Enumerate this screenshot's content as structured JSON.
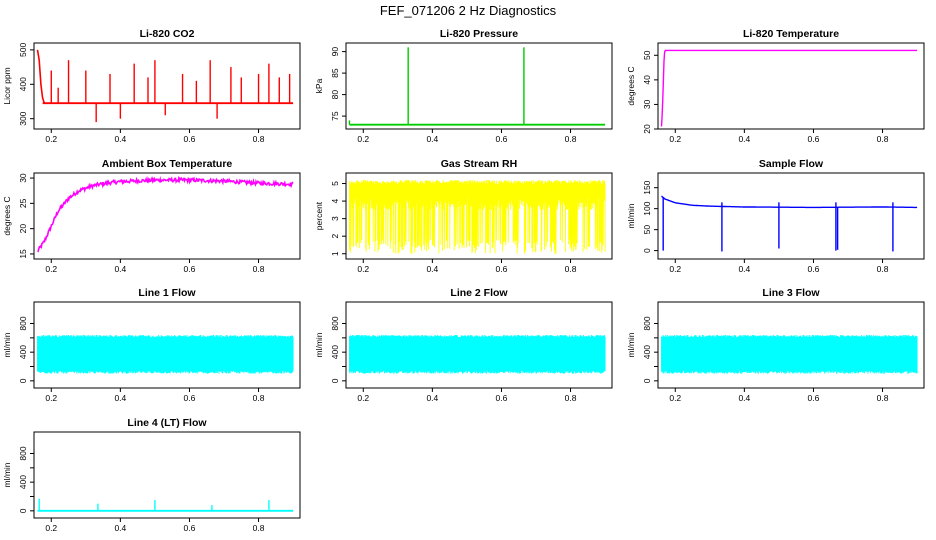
{
  "title": "FEF_071206  2 Hz Diagnostics",
  "chart_data": [
    {
      "id": "co2",
      "type": "line",
      "title": "Li-820 CO2",
      "ylabel": "Licor ppm",
      "color": "#ff0000",
      "xlim": [
        0.15,
        0.92
      ],
      "ylim": [
        270,
        520
      ],
      "xticks": [
        0.2,
        0.4,
        0.6,
        0.8
      ],
      "xtick_labels": [
        "0.2",
        "0.4",
        "0.6",
        "0.8"
      ],
      "yticks": [
        300,
        400,
        500
      ],
      "ytick_labels": [
        "300",
        "400",
        "500"
      ],
      "series": [
        {
          "name": "CO2",
          "baseline": 345,
          "start": [
            [
              0.16,
              500
            ],
            [
              0.165,
              470
            ],
            [
              0.17,
              400
            ],
            [
              0.175,
              360
            ]
          ],
          "spikes": [
            [
              0.2,
              440
            ],
            [
              0.22,
              390
            ],
            [
              0.25,
              470
            ],
            [
              0.3,
              440
            ],
            [
              0.33,
              290
            ],
            [
              0.37,
              430
            ],
            [
              0.4,
              300
            ],
            [
              0.44,
              460
            ],
            [
              0.48,
              420
            ],
            [
              0.5,
              470
            ],
            [
              0.53,
              310
            ],
            [
              0.58,
              430
            ],
            [
              0.62,
              410
            ],
            [
              0.66,
              470
            ],
            [
              0.68,
              300
            ],
            [
              0.72,
              450
            ],
            [
              0.75,
              420
            ],
            [
              0.8,
              430
            ],
            [
              0.83,
              460
            ],
            [
              0.86,
              420
            ],
            [
              0.89,
              430
            ]
          ]
        }
      ]
    },
    {
      "id": "pressure",
      "type": "line",
      "title": "Li-820 Pressure",
      "ylabel": "kPa",
      "color": "#00cc00",
      "xlim": [
        0.15,
        0.92
      ],
      "ylim": [
        72,
        92
      ],
      "xticks": [
        0.2,
        0.4,
        0.6,
        0.8
      ],
      "xtick_labels": [
        "0.2",
        "0.4",
        "0.6",
        "0.8"
      ],
      "yticks": [
        75,
        80,
        85,
        90
      ],
      "ytick_labels": [
        "75",
        "80",
        "85",
        "90"
      ],
      "series": [
        {
          "name": "Pressure",
          "baseline": 73,
          "spikes": [
            [
              0.33,
              91
            ],
            [
              0.665,
              91
            ],
            [
              0.16,
              74
            ]
          ]
        }
      ]
    },
    {
      "id": "temperature",
      "type": "line",
      "title": "Li-820 Temperature",
      "ylabel": "degrees C",
      "color": "#ff00ff",
      "xlim": [
        0.15,
        0.92
      ],
      "ylim": [
        20,
        55
      ],
      "xticks": [
        0.2,
        0.4,
        0.6,
        0.8
      ],
      "xtick_labels": [
        "0.2",
        "0.4",
        "0.6",
        "0.8"
      ],
      "yticks": [
        20,
        30,
        40,
        50
      ],
      "ytick_labels": [
        "20",
        "30",
        "40",
        "50"
      ],
      "series": [
        {
          "name": "Temperature",
          "points": [
            [
              0.16,
              21
            ],
            [
              0.163,
              28
            ],
            [
              0.166,
              42
            ],
            [
              0.168,
              50
            ],
            [
              0.17,
              52
            ],
            [
              0.9,
              52
            ]
          ]
        }
      ]
    },
    {
      "id": "ambient",
      "type": "line",
      "title": "Ambient Box Temperature",
      "ylabel": "degrees C",
      "color": "#ff00ff",
      "xlim": [
        0.15,
        0.92
      ],
      "ylim": [
        14,
        31
      ],
      "xticks": [
        0.2,
        0.4,
        0.6,
        0.8
      ],
      "xtick_labels": [
        "0.2",
        "0.4",
        "0.6",
        "0.8"
      ],
      "yticks": [
        15,
        20,
        25,
        30
      ],
      "ytick_labels": [
        "15",
        "20",
        "25",
        "30"
      ],
      "series": [
        {
          "name": "Ambient",
          "points": [
            [
              0.16,
              15.5
            ],
            [
              0.18,
              17.5
            ],
            [
              0.2,
              20.5
            ],
            [
              0.22,
              23.5
            ],
            [
              0.25,
              26
            ],
            [
              0.28,
              27.5
            ],
            [
              0.32,
              28.5
            ],
            [
              0.36,
              29
            ],
            [
              0.4,
              29.3
            ],
            [
              0.5,
              29.6
            ],
            [
              0.6,
              29.6
            ],
            [
              0.7,
              29.4
            ],
            [
              0.8,
              29
            ],
            [
              0.9,
              28.8
            ]
          ],
          "noise": 0.7
        }
      ]
    },
    {
      "id": "rh",
      "type": "line",
      "title": "Gas Stream RH",
      "ylabel": "percent",
      "color": "#ffff00",
      "xlim": [
        0.15,
        0.92
      ],
      "ylim": [
        0.7,
        5.6
      ],
      "xticks": [
        0.2,
        0.4,
        0.6,
        0.8
      ],
      "xtick_labels": [
        "0.2",
        "0.4",
        "0.6",
        "0.8"
      ],
      "yticks": [
        1,
        2,
        3,
        4,
        5
      ],
      "ytick_labels": [
        "1",
        "2",
        "3",
        "4",
        "5"
      ],
      "series": [
        {
          "name": "RH",
          "band": [
            1,
            5.2
          ],
          "dense_band": [
            3.5,
            5
          ]
        }
      ]
    },
    {
      "id": "sampleflow",
      "type": "line",
      "title": "Sample Flow",
      "ylabel": "ml/min",
      "color": "#0000ff",
      "xlim": [
        0.15,
        0.92
      ],
      "ylim": [
        -20,
        185
      ],
      "xticks": [
        0.2,
        0.4,
        0.6,
        0.8
      ],
      "xtick_labels": [
        "0.2",
        "0.4",
        "0.6",
        "0.8"
      ],
      "yticks": [
        0,
        50,
        100,
        150
      ],
      "ytick_labels": [
        "0",
        "50",
        "100",
        "150"
      ],
      "series": [
        {
          "name": "Sample Flow",
          "points": [
            [
              0.16,
              130
            ],
            [
              0.17,
              123
            ],
            [
              0.2,
              114
            ],
            [
              0.25,
              108
            ],
            [
              0.3,
              106
            ],
            [
              0.4,
              104
            ],
            [
              0.6,
              103
            ],
            [
              0.8,
              104
            ],
            [
              0.9,
              103
            ]
          ],
          "drops": [
            [
              0.165,
              0
            ],
            [
              0.335,
              -2
            ],
            [
              0.5,
              5
            ],
            [
              0.665,
              0
            ],
            [
              0.67,
              2
            ],
            [
              0.83,
              -2
            ]
          ],
          "spikes": [
            [
              0.335,
              115
            ],
            [
              0.5,
              115
            ],
            [
              0.665,
              115
            ],
            [
              0.83,
              115
            ]
          ]
        }
      ]
    },
    {
      "id": "line1",
      "type": "line",
      "title": "Line 1 Flow",
      "ylabel": "ml/min",
      "color": "#00ffff",
      "xlim": [
        0.15,
        0.92
      ],
      "ylim": [
        -100,
        1100
      ],
      "xticks": [
        0.2,
        0.4,
        0.6,
        0.8
      ],
      "xtick_labels": [
        "0.2",
        "0.4",
        "0.6",
        "0.8"
      ],
      "yticks": [
        0,
        200,
        400,
        600,
        800
      ],
      "ytick_labels": [
        "0",
        "",
        "400",
        "",
        "800"
      ],
      "series": [
        {
          "name": "Line 1",
          "band": [
            100,
            640
          ]
        }
      ]
    },
    {
      "id": "line2",
      "type": "line",
      "title": "Line 2 Flow",
      "ylabel": "ml/min",
      "color": "#00ffff",
      "xlim": [
        0.15,
        0.92
      ],
      "ylim": [
        -100,
        1100
      ],
      "xticks": [
        0.2,
        0.4,
        0.6,
        0.8
      ],
      "xtick_labels": [
        "0.2",
        "0.4",
        "0.6",
        "0.8"
      ],
      "yticks": [
        0,
        200,
        400,
        600,
        800
      ],
      "ytick_labels": [
        "0",
        "",
        "400",
        "",
        "800"
      ],
      "series": [
        {
          "name": "Line 2",
          "band": [
            100,
            640
          ]
        }
      ]
    },
    {
      "id": "line3",
      "type": "line",
      "title": "Line 3 Flow",
      "ylabel": "ml/min",
      "color": "#00ffff",
      "xlim": [
        0.15,
        0.92
      ],
      "ylim": [
        -100,
        1100
      ],
      "xticks": [
        0.2,
        0.4,
        0.6,
        0.8
      ],
      "xtick_labels": [
        "0.2",
        "0.4",
        "0.6",
        "0.8"
      ],
      "yticks": [
        0,
        200,
        400,
        600,
        800
      ],
      "ytick_labels": [
        "0",
        "",
        "400",
        "",
        "800"
      ],
      "series": [
        {
          "name": "Line 3",
          "band": [
            100,
            640
          ]
        }
      ]
    },
    {
      "id": "line4",
      "type": "line",
      "title": "Line 4 (LT) Flow",
      "ylabel": "ml/min",
      "color": "#00ffff",
      "xlim": [
        0.15,
        0.92
      ],
      "ylim": [
        -100,
        1100
      ],
      "xticks": [
        0.2,
        0.4,
        0.6,
        0.8
      ],
      "xtick_labels": [
        "0.2",
        "0.4",
        "0.6",
        "0.8"
      ],
      "yticks": [
        0,
        200,
        400,
        600,
        800
      ],
      "ytick_labels": [
        "0",
        "",
        "400",
        "",
        "800"
      ],
      "series": [
        {
          "name": "Line 4",
          "baseline": 0,
          "spikes": [
            [
              0.165,
              170
            ],
            [
              0.335,
              100
            ],
            [
              0.5,
              150
            ],
            [
              0.665,
              80
            ],
            [
              0.83,
              150
            ]
          ]
        }
      ]
    }
  ]
}
